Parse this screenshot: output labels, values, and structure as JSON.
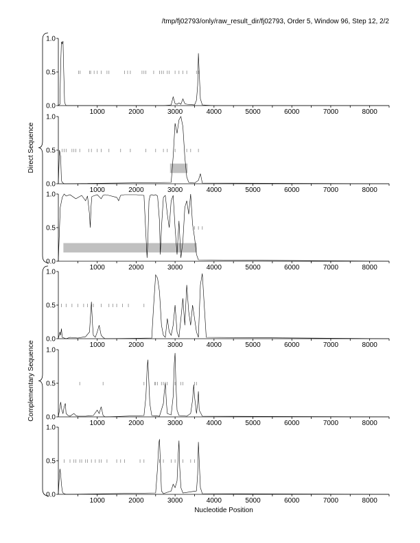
{
  "header": {
    "title": "/tmp/fj02793/only/raw_result_dir/fj02793, Order 5, Window 96, Step 12, 2/2"
  },
  "groups": [
    {
      "label": "Direct Sequence",
      "panels": [
        0,
        1,
        2
      ]
    },
    {
      "label": "Complementary Sequence",
      "panels": [
        3,
        4,
        5
      ]
    }
  ],
  "chart_data": {
    "type": "line",
    "title": "",
    "xlabel": "Nucleotide Position",
    "ylabel": "",
    "xlim": [
      0,
      8500
    ],
    "ylim": [
      0,
      1.0
    ],
    "x_ticks": [
      "1000",
      "2000",
      "3000",
      "4000",
      "5000",
      "6000",
      "7000",
      "8000"
    ],
    "y_ticks": [
      "0.0",
      "0.5",
      "1.0"
    ],
    "grid": false,
    "panels": [
      {
        "name": "direct-1",
        "series": [
          {
            "x": [
              0,
              40,
              60,
              80,
              100,
              120,
              140,
              160,
              180,
              200,
              2700,
              2900,
              2950,
              3000,
              3050,
              3100,
              3150,
              3200,
              3250,
              3300,
              3500,
              3550,
              3580,
              3600,
              3620,
              3650,
              3700,
              4000,
              8500
            ],
            "y": [
              0,
              0.02,
              0.6,
              0.95,
              0.92,
              0.96,
              0.5,
              0.05,
              0.02,
              0,
              0,
              0.01,
              0.13,
              0.03,
              0.02,
              0.04,
              0.02,
              0.1,
              0.03,
              0.02,
              0.01,
              0.08,
              0.3,
              0.78,
              0.5,
              0.1,
              0.01,
              0,
              0
            ]
          }
        ],
        "marks_x": [
          520,
          560,
          800,
          830,
          920,
          1000,
          1100,
          1250,
          1300,
          1700,
          1780,
          1850,
          2150,
          2200,
          2250,
          2450,
          2600,
          2650,
          2700,
          2800,
          2850,
          3000,
          3100,
          3200,
          3300,
          3550,
          3600
        ],
        "shaded": []
      },
      {
        "name": "direct-2",
        "series": [
          {
            "x": [
              0,
              30,
              60,
              80,
              100,
              150,
              200,
              2900,
              2950,
              3000,
              3050,
              3100,
              3150,
              3200,
              3250,
              3300,
              3350,
              3500,
              3600,
              3650,
              3700,
              8500
            ],
            "y": [
              0,
              0.5,
              0.4,
              0.05,
              0.02,
              0,
              0,
              0.02,
              0.4,
              0.9,
              0.75,
              0.95,
              1.0,
              0.85,
              0.4,
              0.1,
              0.02,
              0.01,
              0.05,
              0.15,
              0.01,
              0
            ]
          }
        ],
        "marks_x": [
          100,
          150,
          200,
          350,
          400,
          450,
          550,
          780,
          850,
          1000,
          1100,
          1300,
          1600,
          1850,
          2250,
          2500,
          2700,
          2800,
          3000,
          3300,
          3400,
          3600
        ],
        "shaded": [
          {
            "x0": 2870,
            "x1": 3320,
            "y0": 0.16,
            "y1": 0.3
          }
        ]
      },
      {
        "name": "direct-3",
        "series": [
          {
            "x": [
              0,
              50,
              100,
              150,
              200,
              300,
              450,
              600,
              700,
              750,
              800,
              820,
              840,
              860,
              900,
              1000,
              1100,
              1150,
              1200,
              1300,
              1500,
              1550,
              1600,
              1700,
              2000,
              2200,
              2250,
              2280,
              2300,
              2330,
              2360,
              2400,
              2450,
              2500,
              2550,
              2600,
              2620,
              2650,
              2700,
              2750,
              2800,
              2850,
              2900,
              2950,
              3000,
              3050,
              3100,
              3150,
              3200,
              3250,
              3300,
              3350,
              3400,
              3450,
              3500,
              3550,
              3600,
              8500
            ],
            "y": [
              0,
              0.8,
              0.95,
              1.0,
              0.97,
              0.99,
              0.93,
              0.98,
              0.9,
              0.97,
              0.7,
              0.5,
              0.8,
              0.96,
              0.97,
              0.99,
              0.93,
              0.98,
              0.99,
              0.98,
              0.95,
              0.9,
              0.98,
              0.99,
              0.99,
              0.98,
              0.4,
              0.05,
              0.3,
              0.9,
              0.98,
              0.99,
              0.98,
              0.99,
              0.97,
              0.6,
              0.1,
              0.5,
              0.95,
              0.98,
              0.7,
              0.5,
              0.9,
              0.98,
              0.5,
              0.1,
              0.6,
              0.05,
              0.3,
              0.8,
              0.9,
              0.7,
              1.0,
              0.55,
              0.35,
              0.1,
              0.02,
              0
            ]
          }
        ],
        "marks_x": [
          3500,
          3600,
          3700
        ],
        "shaded": [
          {
            "x0": 130,
            "x1": 3560,
            "y0": 0.13,
            "y1": 0.27
          }
        ]
      },
      {
        "name": "complementary-1",
        "series": [
          {
            "x": [
              0,
              40,
              60,
              80,
              100,
              150,
              200,
              300,
              500,
              700,
              800,
              850,
              880,
              900,
              950,
              1000,
              1050,
              1100,
              1150,
              1200,
              2400,
              2450,
              2500,
              2550,
              2600,
              2650,
              2700,
              2750,
              2800,
              2850,
              2900,
              2950,
              3000,
              3050,
              3100,
              3150,
              3200,
              3250,
              3300,
              3350,
              3400,
              3450,
              3500,
              3550,
              3600,
              3650,
              3700,
              3750,
              3800,
              8500
            ],
            "y": [
              0,
              0.1,
              0.05,
              0.15,
              0.02,
              0.01,
              0,
              0.02,
              0.01,
              0.03,
              0.1,
              0.55,
              0.2,
              0.05,
              0.02,
              0.1,
              0.2,
              0.05,
              0.02,
              0,
              0.01,
              0.5,
              0.95,
              0.9,
              0.7,
              0.2,
              0.05,
              0.02,
              0.3,
              0.1,
              0.05,
              0.2,
              0.5,
              0.1,
              0.02,
              0.3,
              0.6,
              0.2,
              0.8,
              0.4,
              0.2,
              0.5,
              0.3,
              0.1,
              0.02,
              0.8,
              0.97,
              0.5,
              0.02,
              0
            ]
          }
        ],
        "marks_x": [
          80,
          200,
          350,
          500,
          650,
          750,
          900,
          1100,
          1300,
          1400,
          1500,
          1650,
          1800,
          2200
        ],
        "shaded": []
      },
      {
        "name": "complementary-2",
        "series": [
          {
            "x": [
              0,
              30,
              60,
              90,
              120,
              150,
              180,
              200,
              250,
              300,
              400,
              450,
              500,
              700,
              900,
              1000,
              1050,
              1100,
              1150,
              1200,
              2200,
              2250,
              2280,
              2300,
              2320,
              2350,
              2400,
              2600,
              2700,
              2720,
              2750,
              2780,
              2800,
              2900,
              2950,
              2980,
              3000,
              3020,
              3050,
              3100,
              3300,
              3400,
              3450,
              3480,
              3500,
              3550,
              3580,
              3600,
              3620,
              3700,
              8500
            ],
            "y": [
              0,
              0.1,
              0.22,
              0.1,
              0.05,
              0.15,
              0.2,
              0.05,
              0.02,
              0.01,
              0.05,
              0.02,
              0.01,
              0.01,
              0.02,
              0.1,
              0.05,
              0.15,
              0.02,
              0,
              0.02,
              0.3,
              0.7,
              0.85,
              0.6,
              0.2,
              0.02,
              0.01,
              0.2,
              0.35,
              0.5,
              0.2,
              0.05,
              0.03,
              0.3,
              0.8,
              0.95,
              0.5,
              0.1,
              0.02,
              0.01,
              0.05,
              0.25,
              0.48,
              0.3,
              0.05,
              0.2,
              0.38,
              0.1,
              0.01,
              0
            ]
          }
        ],
        "marks_x": [
          550,
          1150,
          2200,
          2480,
          2500,
          2550,
          2650,
          2700,
          2750,
          2800,
          3000,
          3150,
          3200,
          3500,
          3550
        ],
        "shaded": []
      },
      {
        "name": "complementary-3",
        "series": [
          {
            "x": [
              0,
              20,
              40,
              60,
              80,
              100,
              120,
              150,
              200,
              2500,
              2550,
              2580,
              2600,
              2620,
              2650,
              2700,
              2900,
              2950,
              3000,
              3050,
              3080,
              3100,
              3120,
              3150,
              3200,
              3550,
              3580,
              3600,
              3620,
              3650,
              3700,
              8500
            ],
            "y": [
              0,
              0.2,
              0.38,
              0.3,
              0.15,
              0.05,
              0.02,
              0.01,
              0,
              0.02,
              0.4,
              0.75,
              0.82,
              0.5,
              0.05,
              0.01,
              0.05,
              0.15,
              0.1,
              0.2,
              0.6,
              0.8,
              0.4,
              0.1,
              0.02,
              0.05,
              0.3,
              0.78,
              0.5,
              0.1,
              0.01,
              0
            ]
          }
        ],
        "marks_x": [
          150,
          300,
          400,
          450,
          550,
          600,
          700,
          750,
          850,
          950,
          1050,
          1100,
          1250,
          1500,
          1600,
          1700,
          2100,
          2200,
          2600,
          2700,
          2900,
          3000,
          3200,
          3400,
          3500
        ],
        "shaded": []
      }
    ]
  }
}
